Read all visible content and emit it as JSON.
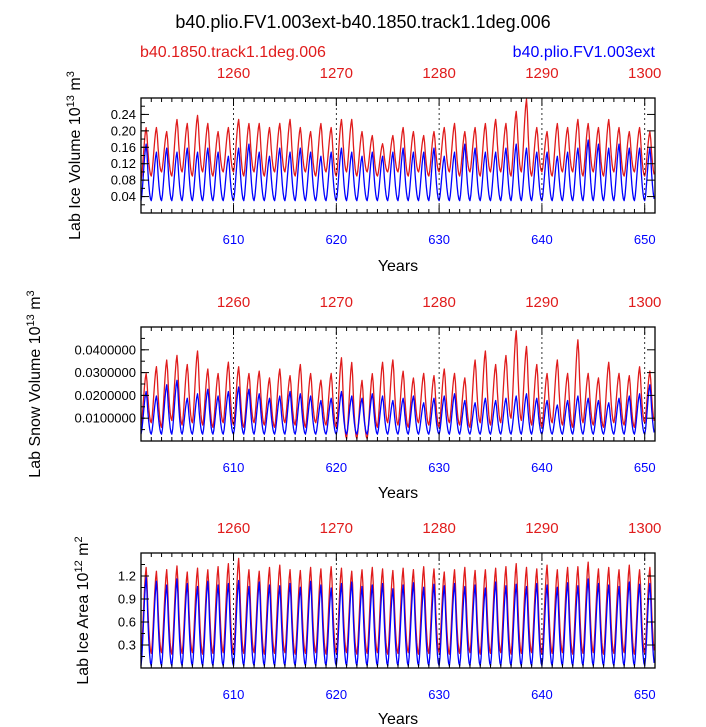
{
  "figure": {
    "title": "b40.plio.FV1.003ext-b40.1850.track1.1deg.006",
    "left_legend": "b40.1850.track1.1deg.006",
    "right_legend": "b40.plio.FV1.003ext",
    "colors": {
      "red": "#e01c1c",
      "blue": "#0000ff"
    }
  },
  "chart_data": [
    {
      "type": "line",
      "ylabel": {
        "text": "Lab Ice Volume 10",
        "exp": "13",
        "unit": " m",
        "unit_exp": "3"
      },
      "xlabel": "Years",
      "bottom_axis": {
        "range": [
          601,
          651
        ],
        "ticks": [
          610,
          620,
          630,
          640,
          650
        ],
        "color": "#0000ff"
      },
      "top_axis": {
        "range": [
          1251,
          1301
        ],
        "ticks": [
          1260,
          1270,
          1280,
          1290,
          1300
        ],
        "color": "#e01c1c"
      },
      "ylim": [
        0.0,
        0.28
      ],
      "yticks": [
        0.04,
        0.08,
        0.12,
        0.16,
        0.2,
        0.24
      ],
      "ytick_labels": [
        "0.04",
        "0.08",
        "0.12",
        "0.16",
        "0.20",
        "0.24"
      ],
      "series": [
        {
          "name": "b40.1850.track1.1deg.006",
          "color": "#e01c1c",
          "peaks": [
            0.21,
            0.21,
            0.2,
            0.23,
            0.22,
            0.24,
            0.22,
            0.2,
            0.21,
            0.23,
            0.22,
            0.22,
            0.21,
            0.22,
            0.23,
            0.21,
            0.2,
            0.22,
            0.21,
            0.23,
            0.23,
            0.2,
            0.19,
            0.17,
            0.19,
            0.21,
            0.2,
            0.19,
            0.2,
            0.21,
            0.22,
            0.2,
            0.21,
            0.22,
            0.23,
            0.22,
            0.25,
            0.28,
            0.21,
            0.2,
            0.22,
            0.21,
            0.23,
            0.22,
            0.21,
            0.23,
            0.21,
            0.2,
            0.21,
            0.2
          ],
          "troughs": [
            0.08,
            0.09,
            0.1,
            0.09,
            0.1,
            0.09,
            0.1,
            0.09,
            0.1,
            0.1,
            0.09,
            0.1,
            0.09,
            0.1,
            0.1,
            0.09,
            0.1,
            0.09,
            0.1,
            0.09,
            0.1,
            0.09,
            0.1,
            0.09,
            0.1,
            0.1,
            0.09,
            0.1,
            0.09,
            0.1,
            0.1,
            0.09,
            0.1,
            0.09,
            0.1,
            0.1,
            0.09,
            0.1,
            0.09,
            0.1,
            0.09,
            0.1,
            0.1,
            0.09,
            0.1,
            0.09,
            0.1,
            0.09,
            0.1,
            0.09
          ]
        },
        {
          "name": "b40.plio.FV1.003ext",
          "color": "#0000ff",
          "peaks": [
            0.17,
            0.15,
            0.16,
            0.15,
            0.16,
            0.15,
            0.16,
            0.15,
            0.14,
            0.16,
            0.17,
            0.15,
            0.14,
            0.16,
            0.15,
            0.16,
            0.15,
            0.14,
            0.15,
            0.16,
            0.15,
            0.14,
            0.15,
            0.14,
            0.15,
            0.16,
            0.15,
            0.15,
            0.16,
            0.14,
            0.15,
            0.17,
            0.16,
            0.15,
            0.15,
            0.16,
            0.17,
            0.16,
            0.15,
            0.15,
            0.14,
            0.15,
            0.16,
            0.18,
            0.17,
            0.16,
            0.17,
            0.16,
            0.16,
            0.16
          ],
          "troughs": [
            0.03,
            0.03,
            0.03,
            0.03,
            0.03,
            0.03,
            0.03,
            0.03,
            0.03,
            0.03,
            0.03,
            0.03,
            0.03,
            0.03,
            0.03,
            0.03,
            0.03,
            0.03,
            0.03,
            0.03,
            0.03,
            0.03,
            0.03,
            0.03,
            0.03,
            0.03,
            0.03,
            0.03,
            0.03,
            0.03,
            0.03,
            0.03,
            0.03,
            0.03,
            0.03,
            0.03,
            0.03,
            0.03,
            0.03,
            0.03,
            0.03,
            0.03,
            0.03,
            0.03,
            0.03,
            0.03,
            0.03,
            0.03,
            0.03,
            0.03
          ]
        }
      ]
    },
    {
      "type": "line",
      "ylabel": {
        "text": "Lab Snow Volume 10",
        "exp": "13",
        "unit": " m",
        "unit_exp": "3"
      },
      "xlabel": "Years",
      "bottom_axis": {
        "range": [
          601,
          651
        ],
        "ticks": [
          610,
          620,
          630,
          640,
          650
        ],
        "color": "#0000ff"
      },
      "top_axis": {
        "range": [
          1251,
          1301
        ],
        "ticks": [
          1260,
          1270,
          1280,
          1290,
          1300
        ],
        "color": "#e01c1c"
      },
      "ylim": [
        0.0,
        0.05
      ],
      "yticks": [
        0.01,
        0.02,
        0.03,
        0.04
      ],
      "ytick_labels": [
        "0.0100000",
        "0.0200000",
        "0.0300000",
        "0.0400000"
      ],
      "series": [
        {
          "name": "b40.1850.track1.1deg.006",
          "color": "#e01c1c",
          "peaks": [
            0.03,
            0.033,
            0.036,
            0.038,
            0.034,
            0.04,
            0.032,
            0.03,
            0.035,
            0.033,
            0.03,
            0.031,
            0.028,
            0.032,
            0.029,
            0.034,
            0.03,
            0.027,
            0.03,
            0.037,
            0.035,
            0.027,
            0.03,
            0.035,
            0.036,
            0.031,
            0.028,
            0.03,
            0.029,
            0.032,
            0.03,
            0.028,
            0.036,
            0.04,
            0.034,
            0.038,
            0.049,
            0.042,
            0.034,
            0.03,
            0.036,
            0.03,
            0.045,
            0.03,
            0.028,
            0.035,
            0.03,
            0.029,
            0.033,
            0.031
          ],
          "troughs": [
            0.007,
            0.008,
            0.006,
            0.009,
            0.007,
            0.008,
            0.007,
            0.006,
            0.008,
            0.007,
            0.006,
            0.008,
            0.007,
            0.006,
            0.008,
            0.007,
            0.006,
            0.008,
            0.007,
            0.006,
            0.001,
            0.001,
            0.001,
            0.006,
            0.008,
            0.007,
            0.006,
            0.008,
            0.007,
            0.006,
            0.008,
            0.007,
            0.006,
            0.008,
            0.007,
            0.008,
            0.01,
            0.009,
            0.007,
            0.006,
            0.008,
            0.007,
            0.006,
            0.008,
            0.007,
            0.006,
            0.008,
            0.007,
            0.006,
            0.008
          ]
        },
        {
          "name": "b40.plio.FV1.003ext",
          "color": "#0000ff",
          "peaks": [
            0.022,
            0.02,
            0.025,
            0.027,
            0.019,
            0.021,
            0.023,
            0.02,
            0.022,
            0.024,
            0.023,
            0.021,
            0.019,
            0.02,
            0.022,
            0.021,
            0.02,
            0.018,
            0.019,
            0.022,
            0.02,
            0.019,
            0.021,
            0.02,
            0.018,
            0.019,
            0.02,
            0.017,
            0.019,
            0.02,
            0.021,
            0.018,
            0.017,
            0.019,
            0.018,
            0.019,
            0.02,
            0.021,
            0.019,
            0.018,
            0.016,
            0.018,
            0.02,
            0.019,
            0.018,
            0.017,
            0.019,
            0.02,
            0.021,
            0.025
          ],
          "troughs": [
            0.003,
            0.003,
            0.003,
            0.003,
            0.003,
            0.003,
            0.003,
            0.003,
            0.003,
            0.003,
            0.003,
            0.003,
            0.003,
            0.003,
            0.003,
            0.003,
            0.003,
            0.003,
            0.003,
            0.003,
            0.003,
            0.003,
            0.003,
            0.003,
            0.003,
            0.003,
            0.003,
            0.003,
            0.003,
            0.003,
            0.003,
            0.003,
            0.003,
            0.003,
            0.003,
            0.003,
            0.003,
            0.003,
            0.003,
            0.003,
            0.003,
            0.003,
            0.003,
            0.003,
            0.003,
            0.003,
            0.003,
            0.003,
            0.003,
            0.003
          ]
        }
      ]
    },
    {
      "type": "line",
      "ylabel": {
        "text": "Lab Ice Area 10",
        "exp": "12",
        "unit": " m",
        "unit_exp": "2"
      },
      "xlabel": "Years",
      "bottom_axis": {
        "range": [
          601,
          651
        ],
        "ticks": [
          610,
          620,
          630,
          640,
          650
        ],
        "color": "#0000ff"
      },
      "top_axis": {
        "range": [
          1251,
          1301
        ],
        "ticks": [
          1260,
          1270,
          1280,
          1290,
          1300
        ],
        "color": "#e01c1c"
      },
      "ylim": [
        0.0,
        1.5
      ],
      "yticks": [
        0.3,
        0.6,
        0.9,
        1.2
      ],
      "ytick_labels": [
        "0.3",
        "0.6",
        "0.9",
        "1.2"
      ],
      "series": [
        {
          "name": "b40.1850.track1.1deg.006",
          "color": "#e01c1c",
          "peaks": [
            1.33,
            1.28,
            1.3,
            1.35,
            1.27,
            1.32,
            1.3,
            1.34,
            1.38,
            1.45,
            1.3,
            1.28,
            1.33,
            1.36,
            1.3,
            1.29,
            1.33,
            1.31,
            1.34,
            1.32,
            1.28,
            1.3,
            1.33,
            1.31,
            1.29,
            1.32,
            1.3,
            1.34,
            1.31,
            1.27,
            1.3,
            1.33,
            1.29,
            1.3,
            1.32,
            1.34,
            1.38,
            1.33,
            1.31,
            1.36,
            1.3,
            1.33,
            1.34,
            1.4,
            1.31,
            1.33,
            1.3,
            1.36,
            1.3,
            1.33
          ],
          "troughs": [
            0.18,
            0.19,
            0.2,
            0.18,
            0.19,
            0.2,
            0.18,
            0.19,
            0.2,
            0.18,
            0.19,
            0.2,
            0.18,
            0.19,
            0.2,
            0.18,
            0.19,
            0.2,
            0.18,
            0.19,
            0.2,
            0.18,
            0.19,
            0.2,
            0.18,
            0.19,
            0.2,
            0.18,
            0.19,
            0.2,
            0.18,
            0.19,
            0.2,
            0.18,
            0.19,
            0.2,
            0.18,
            0.19,
            0.2,
            0.18,
            0.19,
            0.2,
            0.18,
            0.19,
            0.2,
            0.18,
            0.19,
            0.2,
            0.18,
            0.19
          ]
        },
        {
          "name": "b40.plio.FV1.003ext",
          "color": "#0000ff",
          "peaks": [
            1.2,
            1.15,
            1.1,
            1.18,
            1.12,
            1.08,
            1.15,
            1.1,
            1.12,
            1.16,
            1.08,
            1.14,
            1.1,
            1.09,
            1.12,
            1.07,
            1.15,
            1.1,
            1.06,
            1.12,
            1.14,
            1.08,
            1.1,
            1.12,
            1.05,
            1.1,
            1.13,
            1.07,
            1.11,
            1.09,
            1.12,
            1.08,
            1.1,
            1.06,
            1.14,
            1.09,
            1.11,
            1.08,
            1.12,
            1.1,
            1.07,
            1.13,
            1.09,
            1.18,
            1.12,
            1.1,
            1.08,
            1.14,
            1.11,
            1.12
          ],
          "troughs": [
            0.03,
            0.03,
            0.03,
            0.03,
            0.03,
            0.03,
            0.03,
            0.03,
            0.03,
            0.03,
            0.03,
            0.03,
            0.03,
            0.03,
            0.03,
            0.03,
            0.03,
            0.03,
            0.03,
            0.03,
            0.03,
            0.03,
            0.03,
            0.03,
            0.03,
            0.03,
            0.03,
            0.03,
            0.03,
            0.03,
            0.03,
            0.03,
            0.03,
            0.03,
            0.03,
            0.03,
            0.03,
            0.03,
            0.03,
            0.03,
            0.03,
            0.03,
            0.03,
            0.03,
            0.03,
            0.03,
            0.03,
            0.03,
            0.03,
            0.03
          ]
        }
      ]
    }
  ]
}
